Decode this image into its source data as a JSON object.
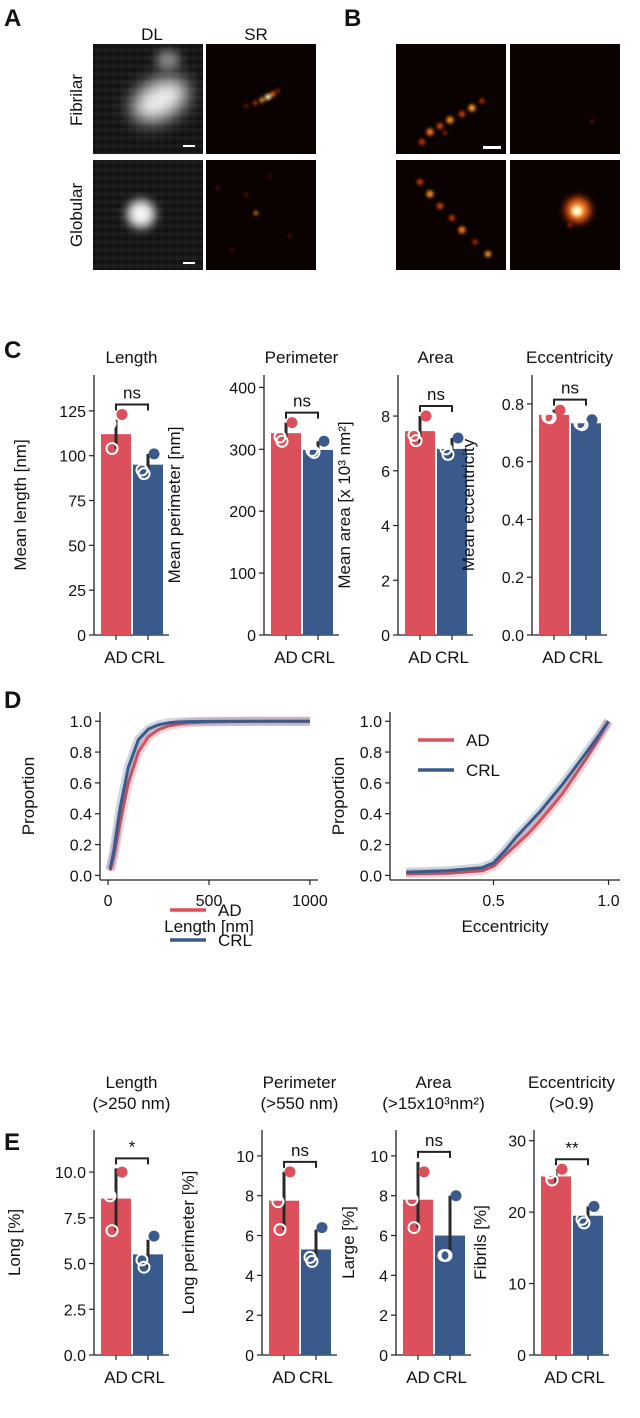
{
  "colors": {
    "ad": "#dc505c",
    "crl": "#3b5a8c",
    "hot_low": "#2a0800",
    "hot_mid": "#d8400c",
    "hot_high": "#fff4b0"
  },
  "panel_letters": [
    "A",
    "B",
    "C",
    "D",
    "E"
  ],
  "panel_a": {
    "col_headers": [
      "DL",
      "SR"
    ],
    "row_labels": [
      "Fibrilar",
      "Globular"
    ]
  },
  "chart_data": [
    {
      "id": "c_length",
      "type": "bar",
      "title": "Length",
      "ylabel": "Mean length [nm]",
      "categories": [
        "AD",
        "CRL"
      ],
      "values": [
        112,
        95
      ],
      "ylim": [
        0,
        145
      ],
      "yticks": [
        0,
        25,
        50,
        75,
        100,
        125
      ],
      "points": [
        [
          123,
          118,
          104
        ],
        [
          101,
          92,
          90
        ]
      ],
      "errors": [
        [
          104,
          120
        ],
        [
          89,
          101
        ]
      ],
      "sig": "ns"
    },
    {
      "id": "c_perimeter",
      "type": "bar",
      "title": "Perimeter",
      "ylabel": "Mean perimeter [nm]",
      "categories": [
        "AD",
        "CRL"
      ],
      "values": [
        326,
        299
      ],
      "ylim": [
        0,
        420
      ],
      "yticks": [
        0,
        100,
        200,
        300,
        400
      ],
      "points": [
        [
          343,
          320,
          313
        ],
        [
          313,
          298,
          295
        ]
      ],
      "errors": [
        [
          313,
          343
        ],
        [
          295,
          313
        ]
      ],
      "sig": "ns"
    },
    {
      "id": "c_area",
      "type": "bar",
      "title": "Area",
      "ylabel": "Mean area [x 10³ nm²]",
      "categories": [
        "AD",
        "CRL"
      ],
      "values": [
        7.45,
        6.8
      ],
      "ylim": [
        0,
        9.5
      ],
      "yticks": [
        0,
        2,
        4,
        6,
        8
      ],
      "points": [
        [
          8.0,
          7.3,
          7.1
        ],
        [
          7.2,
          6.8,
          6.6
        ]
      ],
      "errors": [
        [
          7.0,
          8.0
        ],
        [
          6.5,
          7.2
        ]
      ],
      "sig": "ns"
    },
    {
      "id": "c_eccentricity",
      "type": "bar",
      "title": "Eccentricity",
      "ylabel": "Mean eccentricity",
      "categories": [
        "AD",
        "CRL"
      ],
      "values": [
        0.762,
        0.733
      ],
      "ylim": [
        0,
        0.9
      ],
      "yticks": [
        0.0,
        0.2,
        0.4,
        0.6,
        0.8
      ],
      "points": [
        [
          0.778,
          0.755,
          0.752
        ],
        [
          0.745,
          0.732,
          0.728
        ]
      ],
      "errors": [
        [
          0.75,
          0.78
        ],
        [
          0.725,
          0.745
        ]
      ],
      "sig": "ns"
    },
    {
      "id": "d_length",
      "type": "line",
      "xlabel": "Length [nm]",
      "ylabel": "Proportion",
      "xlim": [
        -40,
        1040
      ],
      "ylim": [
        -0.03,
        1.06
      ],
      "xticks": [
        0,
        500,
        1000
      ],
      "yticks": [
        0.0,
        0.2,
        0.4,
        0.6,
        0.8,
        1.0
      ],
      "legend_position": "lower-right",
      "series": [
        {
          "name": "AD",
          "x": [
            10,
            30,
            60,
            100,
            150,
            200,
            250,
            300,
            350,
            400,
            500,
            700,
            1000
          ],
          "y": [
            0.03,
            0.13,
            0.35,
            0.6,
            0.8,
            0.9,
            0.945,
            0.97,
            0.983,
            0.99,
            0.996,
            0.999,
            1.0
          ]
        },
        {
          "name": "CRL",
          "x": [
            10,
            30,
            60,
            100,
            150,
            200,
            250,
            300,
            350,
            400,
            500,
            700,
            1000
          ],
          "y": [
            0.04,
            0.17,
            0.44,
            0.7,
            0.88,
            0.95,
            0.977,
            0.99,
            0.995,
            0.998,
            0.999,
            1.0,
            1.0
          ]
        }
      ]
    },
    {
      "id": "d_eccentricity",
      "type": "line",
      "xlabel": "Eccentricity",
      "ylabel": "Proportion",
      "xlim": [
        0.05,
        1.05
      ],
      "ylim": [
        -0.03,
        1.06
      ],
      "xticks": [
        0.5,
        1.0
      ],
      "yticks": [
        0.0,
        0.2,
        0.4,
        0.6,
        0.8,
        1.0
      ],
      "legend_position": "upper-left",
      "series": [
        {
          "name": "AD",
          "x": [
            0.12,
            0.3,
            0.45,
            0.5,
            0.55,
            0.6,
            0.65,
            0.7,
            0.75,
            0.8,
            0.85,
            0.9,
            0.95,
            1.0
          ],
          "y": [
            0.01,
            0.015,
            0.03,
            0.06,
            0.13,
            0.2,
            0.27,
            0.35,
            0.44,
            0.53,
            0.64,
            0.75,
            0.87,
            1.0
          ]
        },
        {
          "name": "CRL",
          "x": [
            0.12,
            0.3,
            0.45,
            0.5,
            0.55,
            0.6,
            0.65,
            0.7,
            0.75,
            0.8,
            0.85,
            0.9,
            0.95,
            1.0
          ],
          "y": [
            0.02,
            0.03,
            0.05,
            0.08,
            0.16,
            0.25,
            0.33,
            0.41,
            0.5,
            0.59,
            0.69,
            0.79,
            0.89,
            1.0
          ]
        }
      ]
    },
    {
      "id": "e_length",
      "type": "bar",
      "title": "Length",
      "subtitle": "(>250 nm)",
      "ylabel": "Long [%]",
      "categories": [
        "AD",
        "CRL"
      ],
      "values": [
        8.55,
        5.5
      ],
      "ylim": [
        0,
        12.3
      ],
      "yticks": [
        0.0,
        2.5,
        5.0,
        7.5,
        10.0
      ],
      "points": [
        [
          10.0,
          8.7,
          6.8
        ],
        [
          6.5,
          5.2,
          4.8
        ]
      ],
      "errors": [
        [
          6.8,
          10.2
        ],
        [
          4.8,
          6.3
        ]
      ],
      "sig": "*"
    },
    {
      "id": "e_perimeter",
      "type": "bar",
      "title": "Perimeter",
      "subtitle": "(>550 nm)",
      "ylabel": "Long perimeter [%]",
      "categories": [
        "AD",
        "CRL"
      ],
      "values": [
        7.75,
        5.3
      ],
      "ylim": [
        0,
        11.3
      ],
      "yticks": [
        0,
        2,
        4,
        6,
        8,
        10
      ],
      "points": [
        [
          9.2,
          7.7,
          6.3
        ],
        [
          6.4,
          4.9,
          4.7
        ]
      ],
      "errors": [
        [
          6.3,
          9.2
        ],
        [
          4.7,
          6.3
        ]
      ],
      "sig": "ns"
    },
    {
      "id": "e_area",
      "type": "bar",
      "title": "Area",
      "subtitle": "(>15x10³nm²)",
      "ylabel": "Large [%]",
      "categories": [
        "AD",
        "CRL"
      ],
      "values": [
        7.8,
        6.0
      ],
      "ylim": [
        0,
        11.3
      ],
      "yticks": [
        0,
        2,
        4,
        6,
        8,
        10
      ],
      "points": [
        [
          9.2,
          7.8,
          6.4
        ],
        [
          8.0,
          5.0,
          5.0
        ]
      ],
      "errors": [
        [
          6.4,
          9.7
        ],
        [
          5.0,
          8.0
        ]
      ],
      "sig": "ns"
    },
    {
      "id": "e_eccentricity",
      "type": "bar",
      "title": "Eccentricity",
      "subtitle": "(>0.9)",
      "ylabel": "Fibrils [%]",
      "categories": [
        "AD",
        "CRL"
      ],
      "values": [
        25.0,
        19.5
      ],
      "ylim": [
        0,
        31.5
      ],
      "yticks": [
        0,
        10,
        20,
        30
      ],
      "points": [
        [
          26.0,
          25.5,
          24.5
        ],
        [
          20.8,
          19.0,
          18.5
        ]
      ],
      "errors": [
        [
          24.0,
          26.0
        ],
        [
          18.5,
          20.8
        ]
      ],
      "sig": "**"
    }
  ]
}
